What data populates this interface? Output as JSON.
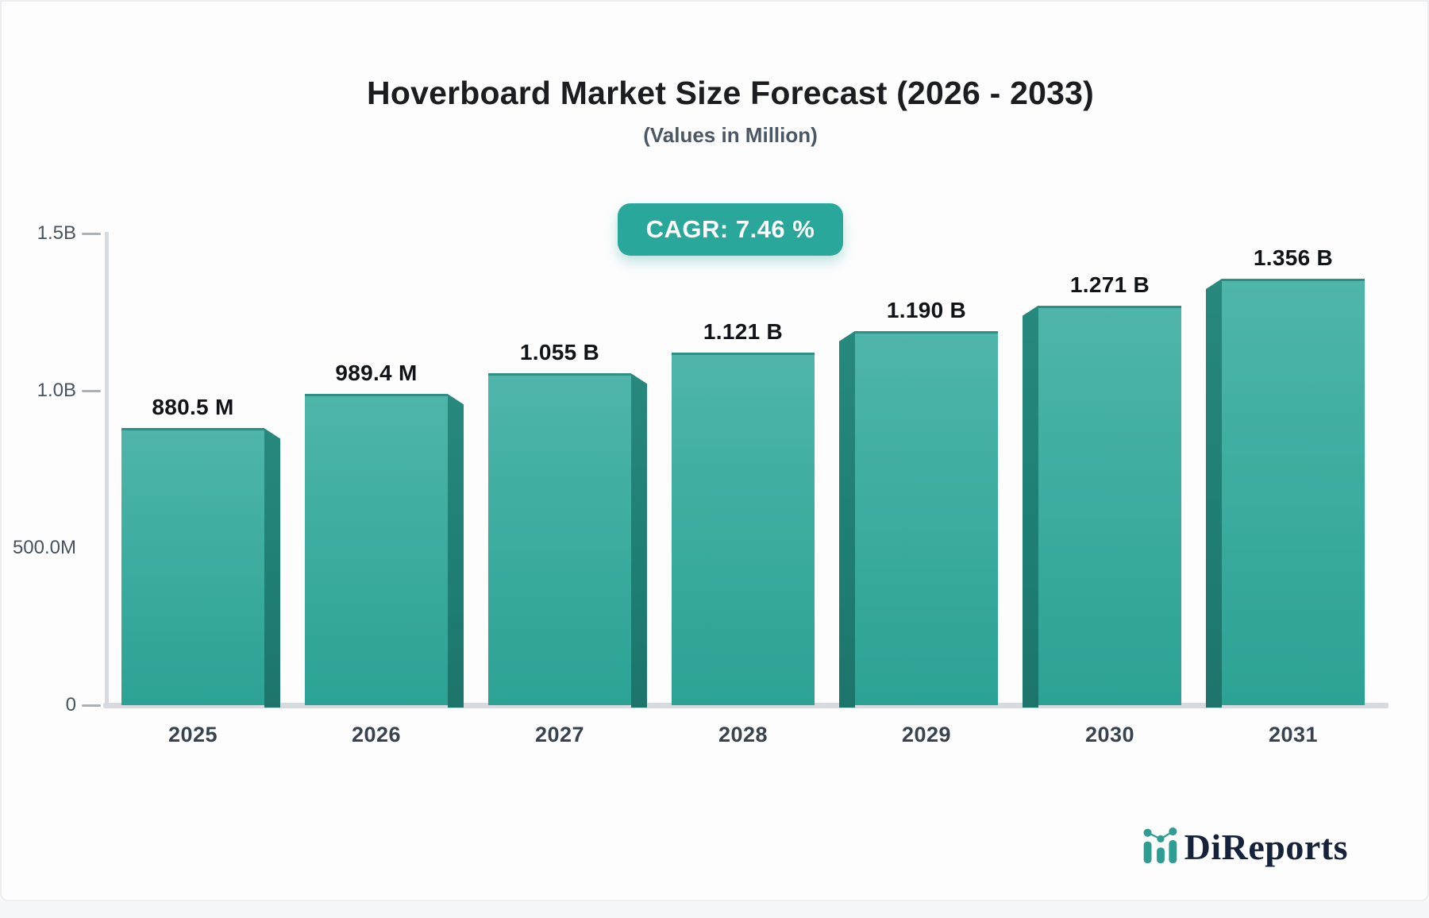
{
  "page": {
    "title": "Hoverboard Market Size Forecast (2026 - 2033)",
    "subtitle": "(Values in Million)",
    "cagr_badge_label": "CAGR: 7.46 %"
  },
  "chart_data": {
    "type": "bar",
    "title": "Hoverboard Market Size Forecast (2026 - 2033)",
    "subtitle": "(Values in Million)",
    "cagr_percent": 7.46,
    "categories": [
      "2025",
      "2026",
      "2027",
      "2028",
      "2029",
      "2030",
      "2031"
    ],
    "values_millions": [
      880.5,
      989.4,
      1055,
      1121,
      1190,
      1271,
      1356
    ],
    "value_labels": [
      "880.5 M",
      "989.4 M",
      "1.055 B",
      "1.121 B",
      "1.190 B",
      "1.271 B",
      "1.356 B"
    ],
    "y_axis": {
      "min_millions": 0,
      "max_millions": 1500,
      "ticks": [
        {
          "label": "1.5B",
          "value_millions": 1500,
          "dash": true
        },
        {
          "label": "1.0B",
          "value_millions": 1000,
          "dash": true
        },
        {
          "label": "500.0M",
          "value_millions": 500,
          "dash": false
        },
        {
          "label": "0",
          "value_millions": 0,
          "dash": true
        }
      ]
    },
    "grid": false,
    "legend": "none",
    "bar_style": "3d-beveled",
    "colors": {
      "bar_top": "#4fb5aa",
      "bar_bottom": "#2ca295",
      "bar_top_edge": "#2e8f85",
      "bar_side_bevel": "#1f7e74",
      "badge_bg": "#2aa79b",
      "axis_line": "#d7dbe0",
      "tick_dash": "#a9b0b9",
      "axis_text": "#46535f",
      "category_text": "#39434e",
      "value_text": "#101418",
      "logo_navy": "#16223a",
      "logo_teal": "#2e9d92"
    }
  },
  "logo": {
    "text": "DiReports",
    "icon": "bar-line-chart-icon"
  }
}
